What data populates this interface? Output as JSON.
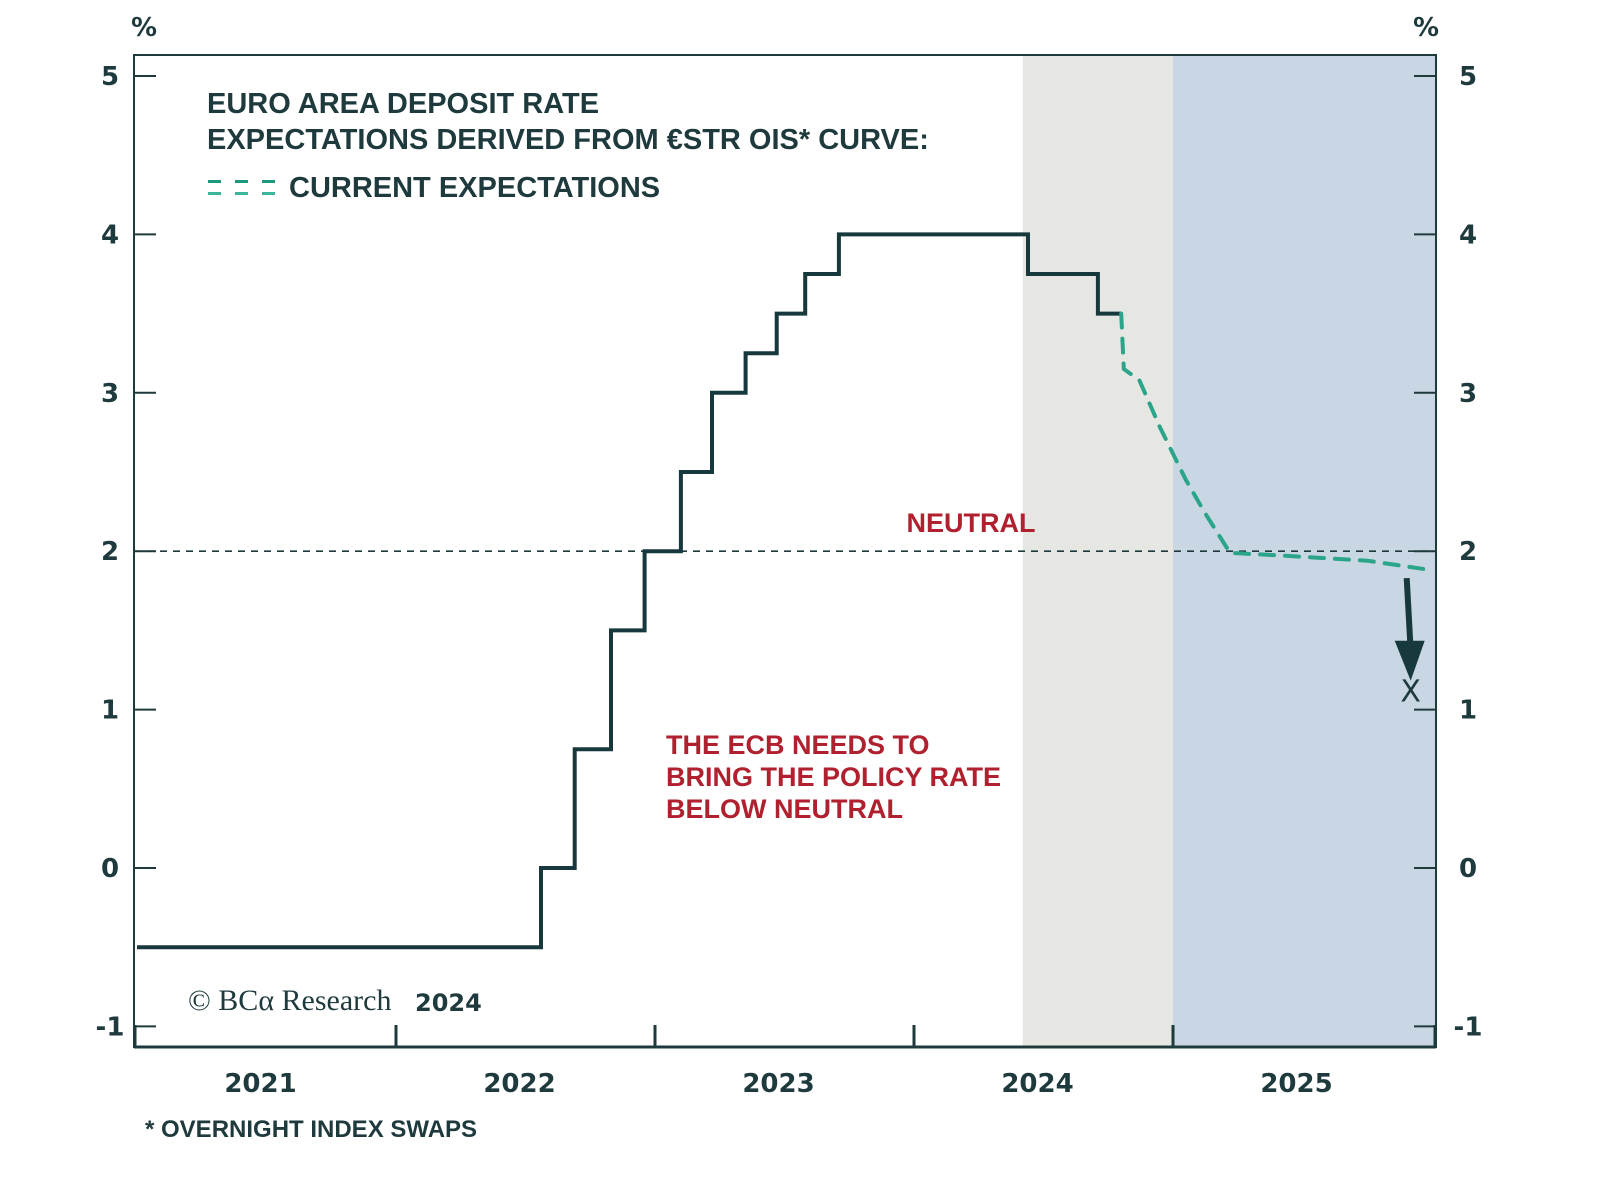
{
  "colors": {
    "ink": "#1e3a3d",
    "policy_line": "#17393d",
    "expectations": "#2aa58a",
    "annotation_red": "#b0202e",
    "shade_gray": "#e6e7e3",
    "shade_blue": "#c9d6e3"
  },
  "chart_data": {
    "type": "line",
    "title": "EURO AREA DEPOSIT RATE",
    "subtitle": "EXPECTATIONS DERIVED FROM €STR OIS* CURVE:",
    "ylabel_left": "%",
    "ylabel_right": "%",
    "xlabel": "",
    "ylim": [
      -1,
      5
    ],
    "xlim": [
      2021.0,
      2026.0
    ],
    "yticks": [
      -1,
      0,
      1,
      2,
      3,
      4,
      5
    ],
    "ytick_labels": [
      "-1",
      "0",
      "1",
      "2",
      "3",
      "4",
      "5"
    ],
    "xticks_years": [
      2021,
      2022,
      2023,
      2024,
      2025
    ],
    "xtick_boundaries": [
      2022,
      2023,
      2024,
      2025
    ],
    "grid": false,
    "legend": {
      "position": "top-left",
      "entries": [
        {
          "label": "CURRENT EXPECTATIONS",
          "style": "dashed",
          "series": "expectations"
        }
      ]
    },
    "shaded_regions": [
      {
        "name": "gray-band",
        "x_start": 2024.42,
        "x_end": 2025.0,
        "color": "#e6e7e3"
      },
      {
        "name": "blue-band",
        "x_start": 2025.0,
        "x_end": 2026.02,
        "color": "#c9d6e3"
      }
    ],
    "reference_lines": [
      {
        "name": "neutral",
        "y": 2.0,
        "label": "NEUTRAL",
        "style": "dashed"
      }
    ],
    "series": [
      {
        "name": "Deposit rate",
        "style": "step",
        "points": [
          [
            2021.0,
            -0.5
          ],
          [
            2022.56,
            -0.5
          ],
          [
            2022.56,
            0.0
          ],
          [
            2022.69,
            0.0
          ],
          [
            2022.69,
            0.75
          ],
          [
            2022.83,
            0.75
          ],
          [
            2022.83,
            1.5
          ],
          [
            2022.96,
            1.5
          ],
          [
            2022.96,
            2.0
          ],
          [
            2023.1,
            2.0
          ],
          [
            2023.1,
            2.5
          ],
          [
            2023.22,
            2.5
          ],
          [
            2023.22,
            3.0
          ],
          [
            2023.35,
            3.0
          ],
          [
            2023.35,
            3.25
          ],
          [
            2023.47,
            3.25
          ],
          [
            2023.47,
            3.5
          ],
          [
            2023.58,
            3.5
          ],
          [
            2023.58,
            3.75
          ],
          [
            2023.71,
            3.75
          ],
          [
            2023.71,
            4.0
          ],
          [
            2024.44,
            4.0
          ],
          [
            2024.44,
            3.75
          ],
          [
            2024.71,
            3.75
          ],
          [
            2024.71,
            3.5
          ],
          [
            2024.8,
            3.5
          ]
        ]
      },
      {
        "name": "Current expectations",
        "style": "dashed",
        "points": [
          [
            2024.8,
            3.5
          ],
          [
            2024.81,
            3.15
          ],
          [
            2024.87,
            3.08
          ],
          [
            2024.95,
            2.78
          ],
          [
            2025.05,
            2.45
          ],
          [
            2025.12,
            2.25
          ],
          [
            2025.22,
            1.99
          ],
          [
            2025.45,
            1.97
          ],
          [
            2025.75,
            1.94
          ],
          [
            2026.0,
            1.88
          ]
        ]
      }
    ],
    "annotations": [
      {
        "name": "neutral-label",
        "text": "NEUTRAL",
        "x": 2024.22,
        "y": 2.12
      },
      {
        "name": "ecb-note",
        "lines": [
          "THE ECB NEEDS TO",
          "BRING THE POLICY RATE",
          "BELOW NEUTRAL"
        ],
        "x": 2023.04,
        "y": 0.76
      },
      {
        "name": "target-arrow",
        "from": [
          2025.91,
          1.83
        ],
        "to": [
          2025.91,
          1.22
        ]
      },
      {
        "name": "target-marker",
        "text": "X",
        "x": 2025.91,
        "y": 1.14
      }
    ],
    "copyright": {
      "brand": "© BCα Research",
      "year": "2024"
    },
    "footnote": "* OVERNIGHT INDEX SWAPS"
  }
}
